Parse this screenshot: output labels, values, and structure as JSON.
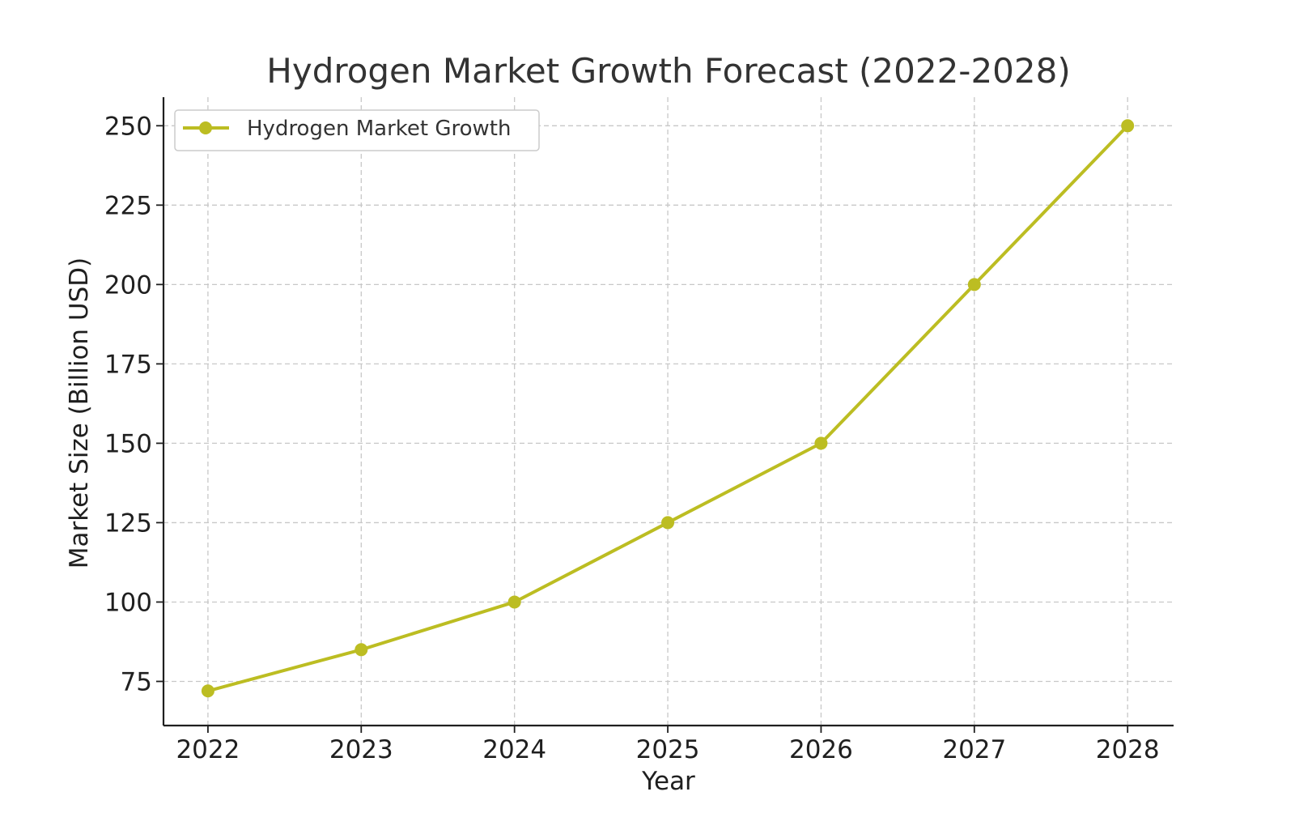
{
  "chart_data": {
    "type": "line",
    "title": "Hydrogen Market Growth Forecast (2022-2028)",
    "xlabel": "Year",
    "ylabel": "Market Size (Billion USD)",
    "x": [
      2022,
      2023,
      2024,
      2025,
      2026,
      2027,
      2028
    ],
    "x_tick_labels": [
      "2022",
      "2023",
      "2024",
      "2025",
      "2026",
      "2027",
      "2028"
    ],
    "y_ticks": [
      75,
      100,
      125,
      150,
      175,
      200,
      225,
      250
    ],
    "y_tick_labels": [
      "75",
      "100",
      "125",
      "150",
      "175",
      "200",
      "225",
      "250"
    ],
    "xlim": [
      2021.71,
      2028.3
    ],
    "ylim": [
      61.1,
      259
    ],
    "grid": true,
    "legend": {
      "placement": "top-left"
    },
    "series": [
      {
        "name": "Hydrogen Market Growth",
        "values": [
          72,
          85,
          100,
          125,
          150,
          200,
          250
        ],
        "color": "#bcbd22",
        "marker": "circle"
      }
    ]
  }
}
